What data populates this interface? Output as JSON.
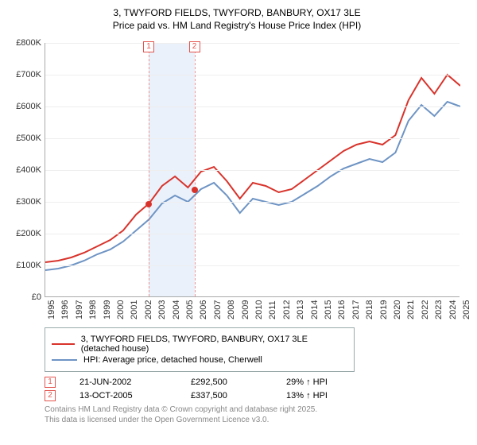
{
  "title_line1": "3, TWYFORD FIELDS, TWYFORD, BANBURY, OX17 3LE",
  "title_line2": "Price paid vs. HM Land Registry's House Price Index (HPI)",
  "chart": {
    "type": "line",
    "x_years": [
      1995,
      1996,
      1997,
      1998,
      1999,
      2000,
      2001,
      2002,
      2003,
      2004,
      2005,
      2006,
      2007,
      2008,
      2009,
      2010,
      2011,
      2012,
      2013,
      2014,
      2015,
      2016,
      2017,
      2018,
      2019,
      2020,
      2021,
      2022,
      2023,
      2024,
      2025
    ],
    "ylim": [
      0,
      800
    ],
    "ytick_step": 100,
    "ytick_prefix": "£",
    "ytick_suffix": "K",
    "grid_color": "#eeeeee",
    "axis_color": "#aaaaaa",
    "band_color": "#eaf1fb",
    "band_edge_color": "#e3554f",
    "series": [
      {
        "name": "red",
        "color": "#d8332b",
        "values": [
          110,
          115,
          125,
          140,
          160,
          180,
          210,
          260,
          295,
          350,
          380,
          345,
          395,
          410,
          365,
          310,
          360,
          350,
          330,
          340,
          370,
          400,
          430,
          460,
          480,
          490,
          480,
          510,
          620,
          690,
          640,
          700,
          665
        ]
      },
      {
        "name": "blue",
        "color": "#6e94c4",
        "values": [
          85,
          90,
          100,
          115,
          135,
          150,
          175,
          210,
          245,
          295,
          320,
          300,
          340,
          360,
          320,
          265,
          310,
          300,
          290,
          300,
          325,
          350,
          380,
          405,
          420,
          435,
          425,
          455,
          555,
          605,
          570,
          615,
          600
        ]
      }
    ],
    "markers": [
      {
        "id": "1",
        "year": 2002.47,
        "value": 292.5
      },
      {
        "id": "2",
        "year": 2005.78,
        "value": 337.5
      }
    ]
  },
  "legend": {
    "items": [
      {
        "color": "#d8332b",
        "label": "3, TWYFORD FIELDS, TWYFORD, BANBURY, OX17 3LE (detached house)"
      },
      {
        "color": "#6e94c4",
        "label": "HPI: Average price, detached house, Cherwell"
      }
    ]
  },
  "marker_rows": [
    {
      "id": "1",
      "date": "21-JUN-2002",
      "price": "£292,500",
      "delta": "29% ↑ HPI"
    },
    {
      "id": "2",
      "date": "13-OCT-2005",
      "price": "£337,500",
      "delta": "13% ↑ HPI"
    }
  ],
  "footnote_l1": "Contains HM Land Registry data © Crown copyright and database right 2025.",
  "footnote_l2": "This data is licensed under the Open Government Licence v3.0."
}
